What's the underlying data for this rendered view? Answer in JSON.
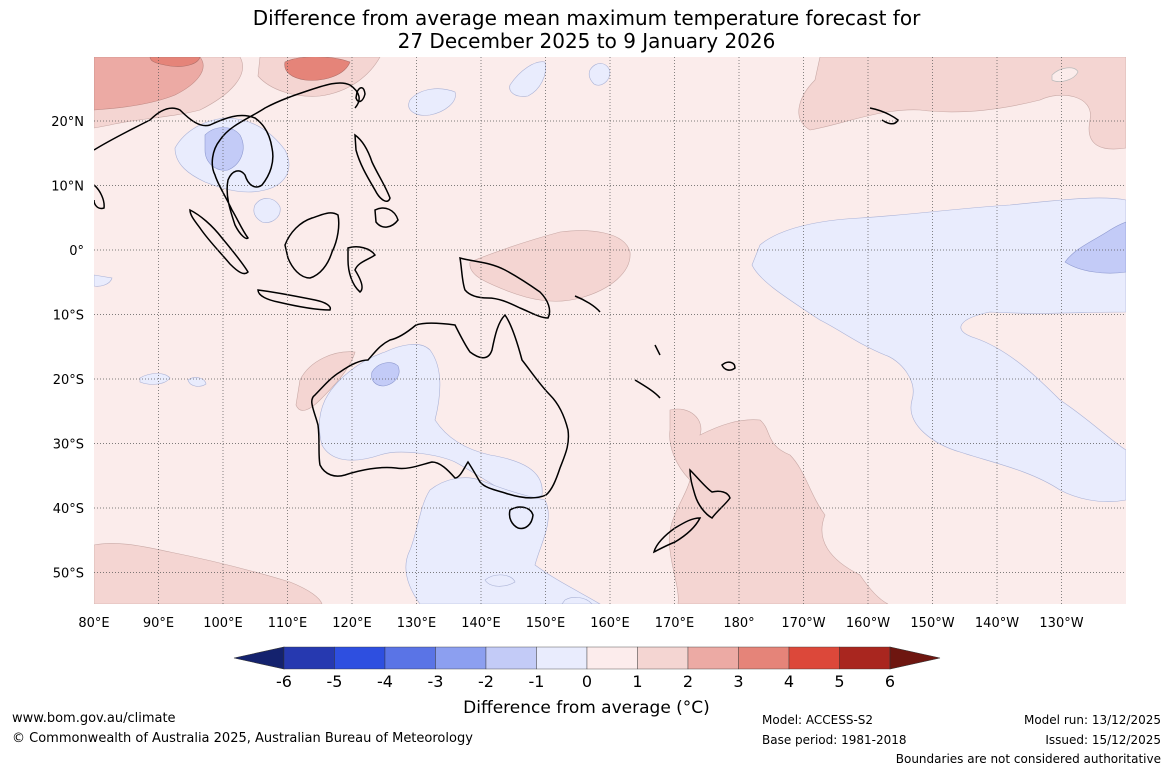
{
  "title": {
    "line1": "Difference from average mean maximum temperature forecast for",
    "line2": "27 December 2025 to 9 January 2026"
  },
  "axes": {
    "lon_labels": [
      "80°E",
      "90°E",
      "100°E",
      "110°E",
      "120°E",
      "130°E",
      "140°E",
      "150°E",
      "160°E",
      "170°E",
      "180°",
      "170°W",
      "160°W",
      "150°W",
      "140°W",
      "130°W"
    ],
    "lat_labels": [
      "20°N",
      "10°N",
      "0°",
      "10°S",
      "20°S",
      "30°S",
      "40°S",
      "50°S"
    ]
  },
  "colorbar": {
    "title": "Difference from average (°C)",
    "ticks": [
      "-6",
      "-5",
      "-4",
      "-3",
      "-2",
      "-1",
      "0",
      "1",
      "2",
      "3",
      "4",
      "5",
      "6"
    ],
    "colors": [
      "#14226e",
      "#2639b0",
      "#2e4fe0",
      "#5a74e6",
      "#8c9ff0",
      "#c3cbf7",
      "#e9ecfd",
      "#fcecec",
      "#f4d5d2",
      "#ecaaa4",
      "#e58479",
      "#dc483a",
      "#a9261f",
      "#6e1610"
    ]
  },
  "map_colors": {
    "background": "#fbeceb",
    "warm1": "#f4d5d2",
    "warm2": "#ecaaa4",
    "warm3": "#e58479",
    "cool1": "#e9ecfd",
    "cool2": "#c3cbf7",
    "cool3": "#a8b4f2"
  },
  "footer": {
    "website": "www.bom.gov.au/climate",
    "copyright": "© Commonwealth of Australia 2025, Australian Bureau of Meteorology",
    "model": "Model: ACCESS-S2",
    "base_period": "Base period: 1981-2018",
    "model_run": "Model run: 13/12/2025",
    "issued": "Issued: 15/12/2025",
    "disclaimer": "Boundaries are not considered authoritative"
  }
}
